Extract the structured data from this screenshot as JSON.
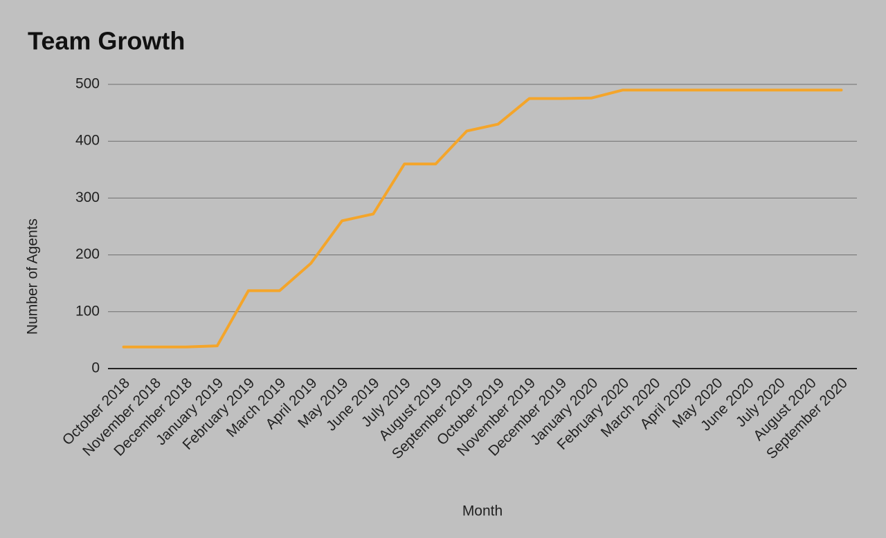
{
  "chart_data": {
    "type": "line",
    "title": "Team Growth",
    "x_label": "Month",
    "y_label": "Number of Agents",
    "categories": [
      "October 2018",
      "November 2018",
      "December 2018",
      "January 2019",
      "February 2019",
      "March 2019",
      "April 2019",
      "May 2019",
      "June 2019",
      "July 2019",
      "August 2019",
      "September 2019",
      "October 2019",
      "November 2019",
      "December 2019",
      "January 2020",
      "February 2020",
      "March 2020",
      "April 2020",
      "May 2020",
      "June 2020",
      "July 2020",
      "August 2020",
      "September 2020"
    ],
    "values": [
      38,
      38,
      38,
      40,
      137,
      137,
      185,
      260,
      272,
      360,
      360,
      418,
      430,
      475,
      475,
      476,
      490,
      490,
      490,
      490,
      490,
      490,
      490,
      490
    ],
    "color": "#f4a52a",
    "ylim": [
      0,
      500
    ],
    "yticks": [
      0,
      100,
      200,
      300,
      400,
      500
    ],
    "grid": true
  }
}
